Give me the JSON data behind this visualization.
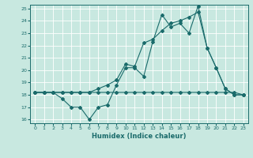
{
  "title": "",
  "xlabel": "Humidex (Indice chaleur)",
  "ylabel": "",
  "bg_color": "#c8e8e0",
  "line_color": "#1a6b6b",
  "grid_color": "#ffffff",
  "xlim": [
    -0.5,
    23.5
  ],
  "ylim": [
    15.7,
    25.3
  ],
  "xticks": [
    0,
    1,
    2,
    3,
    4,
    5,
    6,
    7,
    8,
    9,
    10,
    11,
    12,
    13,
    14,
    15,
    16,
    17,
    18,
    19,
    20,
    21,
    22,
    23
  ],
  "yticks": [
    16,
    17,
    18,
    19,
    20,
    21,
    22,
    23,
    24,
    25
  ],
  "line1_x": [
    0,
    1,
    2,
    3,
    4,
    5,
    6,
    7,
    8,
    9,
    10,
    11,
    12,
    13,
    14,
    15,
    16,
    17,
    18,
    19,
    20,
    21,
    22,
    23
  ],
  "line1_y": [
    18.2,
    18.2,
    18.2,
    18.2,
    18.2,
    18.2,
    18.2,
    18.2,
    18.2,
    18.2,
    18.2,
    18.2,
    18.2,
    18.2,
    18.2,
    18.2,
    18.2,
    18.2,
    18.2,
    18.2,
    18.2,
    18.2,
    18.2,
    18.0
  ],
  "line2_x": [
    0,
    1,
    2,
    3,
    4,
    5,
    6,
    7,
    8,
    9,
    10,
    11,
    12,
    13,
    14,
    15,
    16,
    17,
    18,
    19,
    20,
    21,
    22,
    23
  ],
  "line2_y": [
    18.2,
    18.2,
    18.2,
    17.7,
    17.0,
    17.0,
    16.0,
    17.0,
    17.2,
    18.8,
    20.2,
    20.2,
    19.5,
    22.3,
    24.5,
    23.5,
    23.8,
    23.0,
    25.2,
    21.8,
    20.2,
    18.5,
    18.0,
    18.0
  ],
  "line3_x": [
    0,
    1,
    2,
    3,
    4,
    5,
    6,
    7,
    8,
    9,
    10,
    11,
    12,
    13,
    14,
    15,
    16,
    17,
    18,
    19,
    20,
    21,
    22,
    23
  ],
  "line3_y": [
    18.2,
    18.2,
    18.2,
    18.2,
    18.2,
    18.2,
    18.2,
    18.5,
    18.8,
    19.2,
    20.5,
    20.3,
    22.2,
    22.5,
    23.2,
    23.8,
    24.0,
    24.3,
    24.7,
    21.8,
    20.2,
    18.5,
    18.0,
    18.0
  ]
}
